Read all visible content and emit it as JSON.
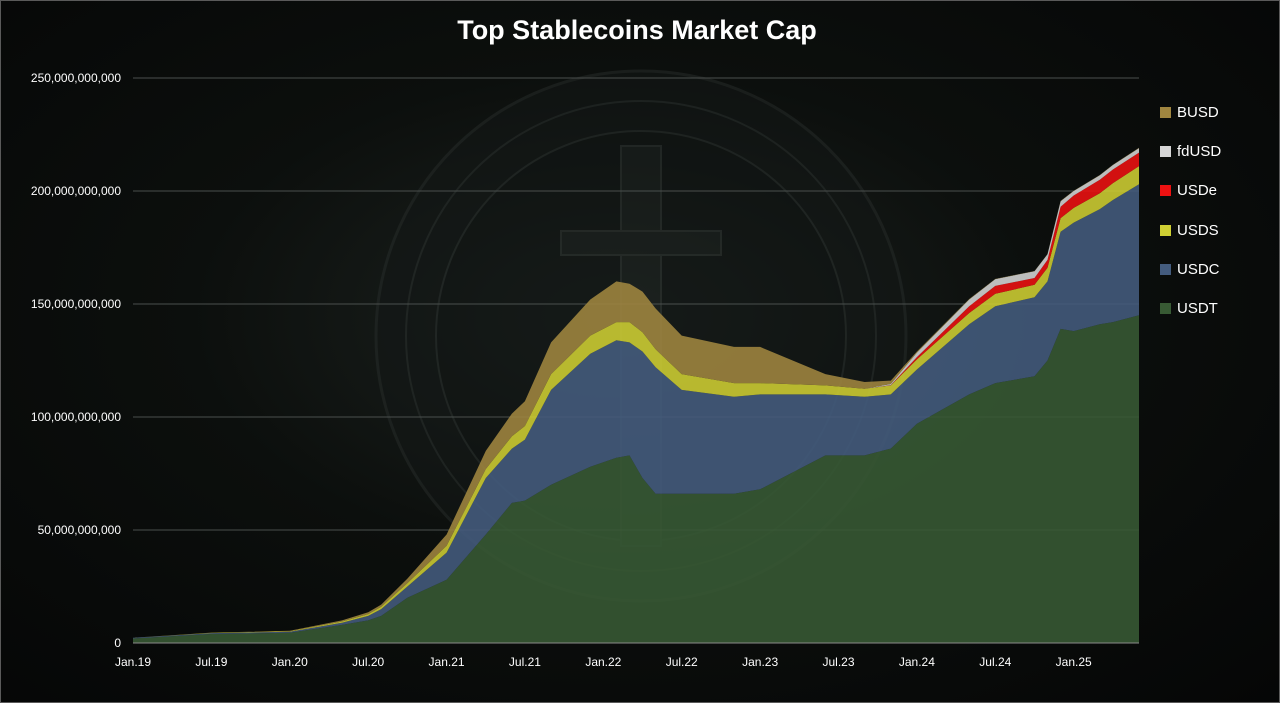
{
  "chart_data": {
    "type": "area",
    "stacked": true,
    "title": "Top Stablecoins Market Cap",
    "xlabel": "",
    "ylabel": "",
    "ylim": [
      0,
      250000000000
    ],
    "yticks": [
      0,
      50000000000,
      100000000000,
      150000000000,
      200000000000,
      250000000000
    ],
    "ytick_labels": [
      "0",
      "50,000,000,000",
      "100,000,000,000",
      "150,000,000,000",
      "200,000,000,000",
      "250,000,000,000"
    ],
    "xlim": [
      0,
      77
    ],
    "xtick_positions": [
      0,
      6,
      12,
      18,
      24,
      30,
      36,
      42,
      48,
      54,
      60,
      66,
      72
    ],
    "xtick_labels": [
      "Jan.19",
      "Jul.19",
      "Jan.20",
      "Jul.20",
      "Jan.21",
      "Jul.21",
      "Jan.22",
      "Jul.22",
      "Jan.23",
      "Jul.23",
      "Jan.24",
      "Jul.24",
      "Jan.25"
    ],
    "grid": true,
    "legend_position": "right",
    "x": [
      0,
      6,
      12,
      16,
      18,
      19,
      21,
      24,
      27,
      29,
      30,
      32,
      35,
      37,
      38,
      39,
      40,
      42,
      46,
      48,
      53,
      56,
      58,
      60,
      64,
      66,
      69,
      70,
      71,
      72,
      74,
      75,
      77
    ],
    "series": [
      {
        "name": "USDT",
        "color": "#385a34",
        "values": [
          2000000000.0,
          4000000000.0,
          4500000000.0,
          8000000000.0,
          10000000000.0,
          12000000000.0,
          20000000000.0,
          28000000000.0,
          48000000000.0,
          62000000000.0,
          63000000000.0,
          70000000000.0,
          78000000000.0,
          82000000000.0,
          83000000000.0,
          73000000000.0,
          66000000000.0,
          66000000000.0,
          66000000000.0,
          68000000000.0,
          83000000000.0,
          83000000000.0,
          86000000000.0,
          97000000000.0,
          110000000000.0,
          115000000000.0,
          118000000000.0,
          125000000000.0,
          139000000000.0,
          138000000000.0,
          141000000000.0,
          142000000000.0,
          145000000000.0
        ]
      },
      {
        "name": "USDC",
        "color": "#445c7e",
        "values": [
          300000000.0,
          400000000.0,
          500000000.0,
          1000000000.0,
          2000000000.0,
          3000000000.0,
          5000000000.0,
          12000000000.0,
          25000000000.0,
          24000000000.0,
          27000000000.0,
          42000000000.0,
          50000000000.0,
          52000000000.0,
          50000000000.0,
          56000000000.0,
          56000000000.0,
          46000000000.0,
          43000000000.0,
          42000000000.0,
          27000000000.0,
          26000000000.0,
          24000000000.0,
          24000000000.0,
          31000000000.0,
          34000000000.0,
          35000000000.0,
          35000000000.0,
          43000000000.0,
          48000000000.0,
          51000000000.0,
          54000000000.0,
          58000000000.0
        ]
      },
      {
        "name": "USDS",
        "color": "#cfcf33",
        "values": [
          0,
          100000000.0,
          200000000.0,
          500000000.0,
          800000000.0,
          1000000000.0,
          1500000000.0,
          3000000000.0,
          4000000000.0,
          5500000000.0,
          6000000000.0,
          7000000000.0,
          8000000000.0,
          8000000000.0,
          9000000000.0,
          8500000000.0,
          8000000000.0,
          7000000000.0,
          6000000000.0,
          5000000000.0,
          4000000000.0,
          3500000000.0,
          4000000000.0,
          4500000000.0,
          5000000000.0,
          5500000000.0,
          5500000000.0,
          6000000000.0,
          6000000000.0,
          6500000000.0,
          7000000000.0,
          7500000000.0,
          8000000000.0
        ]
      },
      {
        "name": "USDe",
        "color": "#ee1111",
        "values": [
          0,
          0,
          0,
          0,
          0,
          0,
          0,
          0,
          0,
          0,
          0,
          0,
          0,
          0,
          0,
          0,
          0,
          0,
          0,
          0,
          0,
          0,
          100000000.0,
          1000000000.0,
          3000000000.0,
          3500000000.0,
          3000000000.0,
          3500000000.0,
          5000000000.0,
          5500000000.0,
          6000000000.0,
          6000000000.0,
          6000000000.0
        ]
      },
      {
        "name": "fdUSD",
        "color": "#d6d6d6",
        "values": [
          0,
          0,
          0,
          0,
          0,
          0,
          0,
          0,
          0,
          0,
          0,
          0,
          0,
          0,
          0,
          0,
          0,
          0,
          0,
          0,
          0,
          0,
          500000000.0,
          2000000000.0,
          3000000000.0,
          3000000000.0,
          3000000000.0,
          2500000000.0,
          2500000000.0,
          2000000000.0,
          2000000000.0,
          2000000000.0,
          2000000000.0
        ]
      },
      {
        "name": "BUSD",
        "color": "#a08640",
        "values": [
          0,
          100000000.0,
          200000000.0,
          500000000.0,
          800000000.0,
          1000000000.0,
          2000000000.0,
          5000000000.0,
          8000000000.0,
          10000000000.0,
          11000000000.0,
          14000000000.0,
          16000000000.0,
          18000000000.0,
          17000000000.0,
          18000000000.0,
          18000000000.0,
          17000000000.0,
          16000000000.0,
          16000000000.0,
          5000000000.0,
          3000000000.0,
          1500000000.0,
          500000000.0,
          200000000.0,
          100000000.0,
          100000000.0,
          100000000.0,
          100000000.0,
          100000000.0,
          100000000.0,
          100000000.0,
          100000000.0
        ]
      }
    ],
    "legend_order": [
      "BUSD",
      "fdUSD",
      "USDe",
      "USDS",
      "USDC",
      "USDT"
    ]
  }
}
